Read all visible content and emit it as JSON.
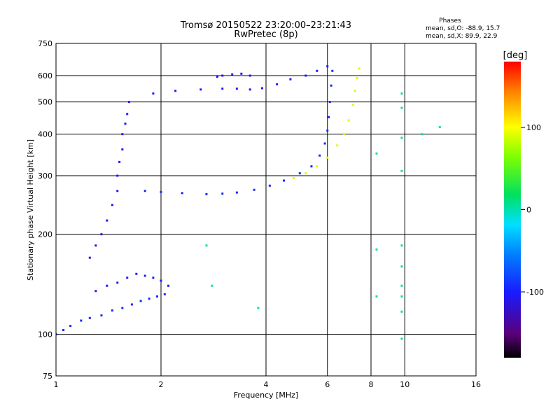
{
  "chart_data": {
    "type": "scatter",
    "title": "Tromsø 20150522 23:20:00–23:21:43",
    "subtitle": "RwPretec (8p)",
    "phase_stats": {
      "heading": "Phases",
      "line_o": "mean, sd,O: -88.9, 15.7",
      "line_x": "mean, sd,X:  89.9, 22.9"
    },
    "xlabel": "Frequency [MHz]",
    "ylabel": "Stationary phase Virtual Height [km]",
    "x_scale": "log",
    "y_scale": "log",
    "xlim": [
      1,
      16
    ],
    "ylim": [
      75,
      750
    ],
    "x_ticks": [
      1,
      2,
      4,
      6,
      8,
      10,
      16
    ],
    "y_ticks": [
      75,
      100,
      200,
      300,
      400,
      500,
      600,
      750
    ],
    "grid": true,
    "colorbar": {
      "label": "[deg]",
      "min": -180,
      "max": 180,
      "ticks": [
        100,
        0,
        -100
      ]
    },
    "traces": [
      {
        "name_hint": "E-region lower band",
        "phase": -95,
        "points": [
          [
            1.0,
            100
          ],
          [
            1.05,
            103
          ],
          [
            1.1,
            106
          ],
          [
            1.18,
            110
          ],
          [
            1.25,
            112
          ],
          [
            1.35,
            114
          ],
          [
            1.45,
            118
          ],
          [
            1.55,
            120
          ],
          [
            1.65,
            123
          ],
          [
            1.75,
            126
          ],
          [
            1.85,
            128
          ],
          [
            1.95,
            130
          ],
          [
            2.05,
            132
          ]
        ]
      },
      {
        "name_hint": "Es/E cloud",
        "phase": -100,
        "points": [
          [
            1.3,
            135
          ],
          [
            1.4,
            140
          ],
          [
            1.5,
            143
          ],
          [
            1.6,
            148
          ],
          [
            1.7,
            152
          ],
          [
            1.8,
            150
          ],
          [
            1.9,
            148
          ],
          [
            2.0,
            145
          ],
          [
            2.1,
            140
          ]
        ]
      },
      {
        "name_hint": "F1 cusp column",
        "phase": -105,
        "points": [
          [
            1.25,
            170
          ],
          [
            1.3,
            185
          ],
          [
            1.35,
            200
          ],
          [
            1.4,
            220
          ],
          [
            1.45,
            245
          ],
          [
            1.5,
            270
          ],
          [
            1.5,
            300
          ],
          [
            1.52,
            330
          ],
          [
            1.55,
            360
          ],
          [
            1.55,
            400
          ],
          [
            1.58,
            430
          ],
          [
            1.6,
            460
          ],
          [
            1.62,
            500
          ]
        ]
      },
      {
        "name_hint": "F2 ordinary trace",
        "phase": -95,
        "points": [
          [
            1.8,
            270
          ],
          [
            2.0,
            268
          ],
          [
            2.3,
            266
          ],
          [
            2.7,
            264
          ],
          [
            3.0,
            265
          ],
          [
            3.3,
            267
          ],
          [
            3.7,
            272
          ],
          [
            4.1,
            280
          ],
          [
            4.5,
            290
          ],
          [
            5.0,
            305
          ],
          [
            5.4,
            320
          ],
          [
            5.7,
            345
          ],
          [
            5.9,
            375
          ],
          [
            6.0,
            410
          ],
          [
            6.05,
            450
          ],
          [
            6.1,
            500
          ],
          [
            6.15,
            560
          ],
          [
            6.2,
            620
          ]
        ]
      },
      {
        "name_hint": "F2 extraordinary trace",
        "phase": 90,
        "points": [
          [
            4.8,
            295
          ],
          [
            5.2,
            305
          ],
          [
            5.6,
            320
          ],
          [
            6.0,
            340
          ],
          [
            6.4,
            370
          ],
          [
            6.7,
            400
          ],
          [
            6.9,
            440
          ],
          [
            7.1,
            490
          ],
          [
            7.2,
            540
          ],
          [
            7.3,
            590
          ],
          [
            7.4,
            630
          ]
        ]
      },
      {
        "name_hint": "Multiple reflection",
        "phase": -100,
        "points": [
          [
            1.9,
            530
          ],
          [
            2.2,
            540
          ],
          [
            2.6,
            545
          ],
          [
            3.0,
            548
          ],
          [
            3.3,
            548
          ],
          [
            3.6,
            545
          ],
          [
            3.9,
            550
          ],
          [
            4.3,
            565
          ],
          [
            4.7,
            585
          ],
          [
            5.2,
            600
          ],
          [
            5.6,
            620
          ],
          [
            6.0,
            640
          ]
        ]
      },
      {
        "name_hint": "Upper cluster",
        "phase": -110,
        "points": [
          [
            2.9,
            595
          ],
          [
            3.0,
            600
          ],
          [
            3.2,
            605
          ],
          [
            3.4,
            608
          ],
          [
            3.6,
            600
          ]
        ]
      },
      {
        "name_hint": "Scattered points",
        "phase": 0,
        "points": [
          [
            8.3,
            350
          ],
          [
            8.3,
            180
          ],
          [
            8.3,
            130
          ],
          [
            9.8,
            530
          ],
          [
            9.8,
            480
          ],
          [
            9.8,
            390
          ],
          [
            9.8,
            310
          ],
          [
            9.8,
            185
          ],
          [
            9.8,
            160
          ],
          [
            9.8,
            140
          ],
          [
            9.8,
            130
          ],
          [
            9.8,
            117
          ],
          [
            9.8,
            97
          ],
          [
            11.2,
            400
          ],
          [
            12.6,
            420
          ],
          [
            3.8,
            120
          ],
          [
            2.8,
            140
          ],
          [
            2.7,
            185
          ]
        ]
      }
    ]
  }
}
